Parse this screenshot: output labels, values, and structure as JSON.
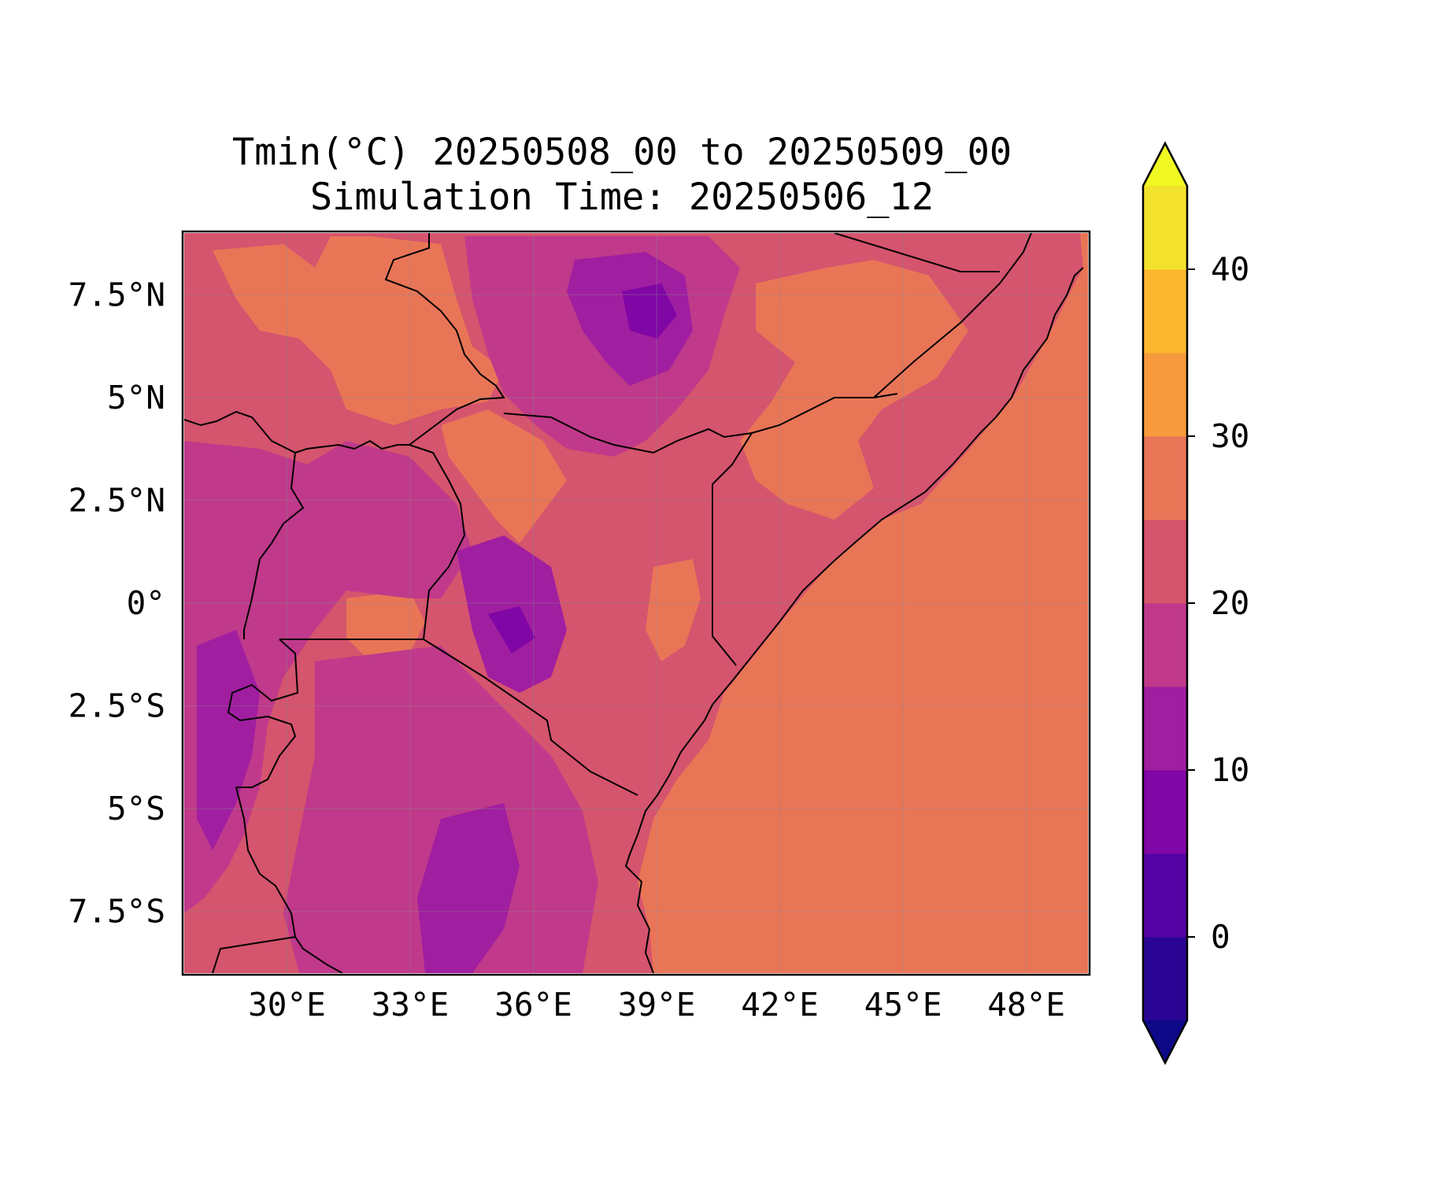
{
  "title": {
    "line1": "Tmin(°C) 20250508_00 to 20250509_00",
    "line2": "Simulation Time: 20250506_12"
  },
  "map": {
    "lon_range": [
      27.5,
      49.5
    ],
    "lat_range": [
      -9,
      9
    ],
    "lon_ticks": [
      {
        "value": 30,
        "label": "30°E"
      },
      {
        "value": 33,
        "label": "33°E"
      },
      {
        "value": 36,
        "label": "36°E"
      },
      {
        "value": 39,
        "label": "39°E"
      },
      {
        "value": 42,
        "label": "42°E"
      },
      {
        "value": 45,
        "label": "45°E"
      },
      {
        "value": 48,
        "label": "48°E"
      }
    ],
    "lat_ticks": [
      {
        "value": 7.5,
        "label": "7.5°N"
      },
      {
        "value": 5,
        "label": "5°N"
      },
      {
        "value": 2.5,
        "label": "2.5°N"
      },
      {
        "value": 0,
        "label": "0°"
      },
      {
        "value": -2.5,
        "label": "2.5°S"
      },
      {
        "value": -5,
        "label": "5°S"
      },
      {
        "value": -7.5,
        "label": "7.5°S"
      }
    ],
    "gridlines": true,
    "ocean_color": "#e97557"
  },
  "colorbar": {
    "levels": [
      -5,
      0,
      5,
      10,
      15,
      20,
      25,
      30,
      35,
      40,
      45
    ],
    "extend": "both",
    "under_color": "#0d0887",
    "over_color": "#f0f921",
    "colors": [
      "#2a0593",
      "#5402a3",
      "#8006a6",
      "#a01ea0",
      "#c0398b",
      "#d5546e",
      "#e97557",
      "#f79a3d",
      "#fdb72e",
      "#f3e22c"
    ],
    "ticks": [
      {
        "value": 0,
        "label": "0"
      },
      {
        "value": 10,
        "label": "10"
      },
      {
        "value": 20,
        "label": "20"
      },
      {
        "value": 30,
        "label": "30"
      },
      {
        "value": 40,
        "label": "40"
      }
    ]
  }
}
